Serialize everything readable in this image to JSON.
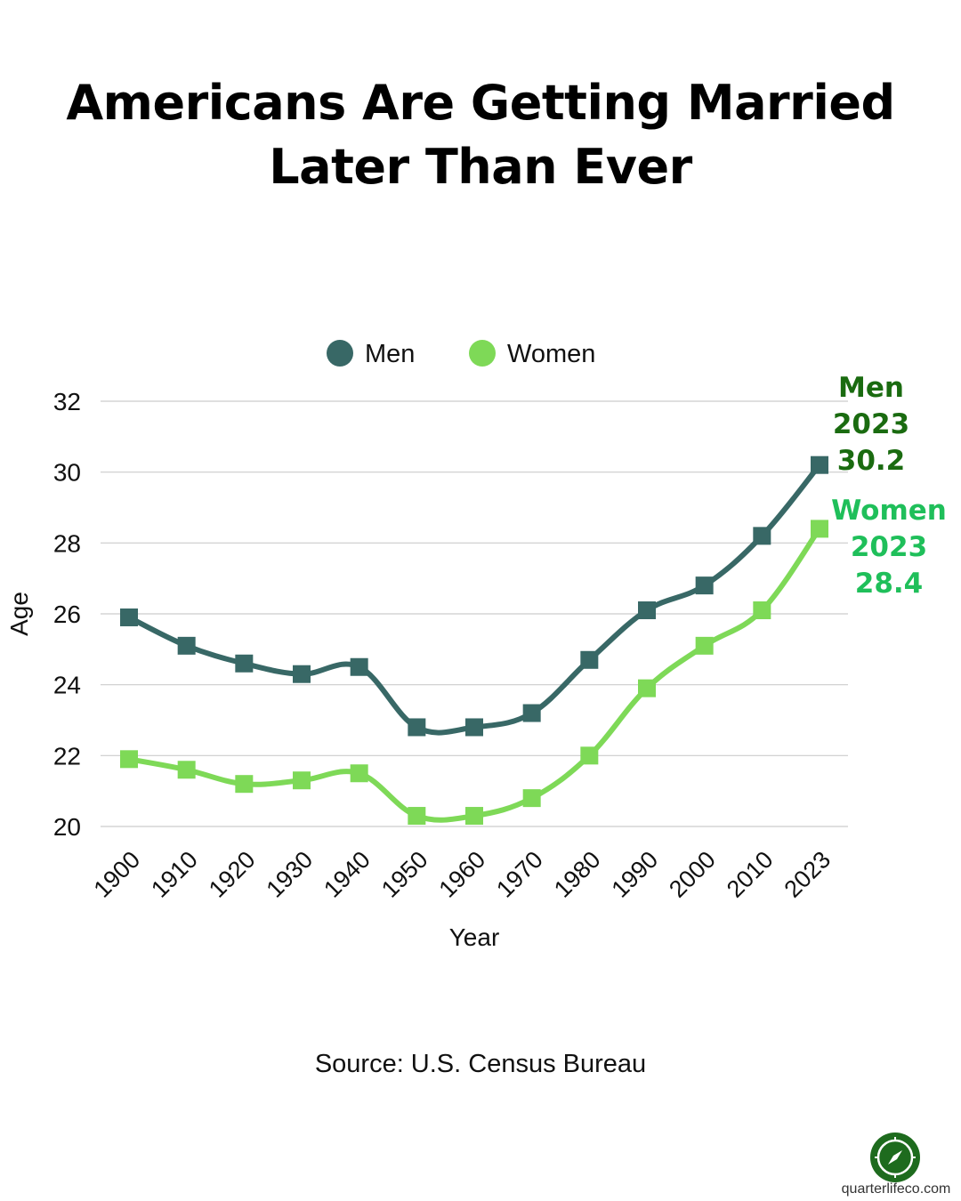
{
  "title_lines": [
    "Americans Are Getting Married",
    "Later Than Ever"
  ],
  "source": "Source: U.S. Census Bureau",
  "brand": {
    "text": "quarterlifeco.com",
    "icon": "compass-icon",
    "color": "#1e6b1e"
  },
  "colors": {
    "men": "#386866",
    "women": "#7ed957",
    "men_label": "#1a6b10",
    "women_label": "#1fbf5a",
    "grid": "#cccccc"
  },
  "end_labels": {
    "men": [
      "Men",
      "2023",
      "30.2"
    ],
    "women": [
      "Women",
      "2023",
      "28.4"
    ]
  },
  "chart_data": {
    "type": "line",
    "categories": [
      "1900",
      "1910",
      "1920",
      "1930",
      "1940",
      "1950",
      "1960",
      "1970",
      "1980",
      "1990",
      "2000",
      "2010",
      "2023"
    ],
    "series": [
      {
        "name": "Men",
        "values": [
          25.9,
          25.1,
          24.6,
          24.3,
          24.5,
          22.8,
          22.8,
          23.2,
          24.7,
          26.1,
          26.8,
          28.2,
          30.2
        ]
      },
      {
        "name": "Women",
        "values": [
          21.9,
          21.6,
          21.2,
          21.3,
          21.5,
          20.3,
          20.3,
          20.8,
          22.0,
          23.9,
          25.1,
          26.1,
          28.4
        ]
      }
    ],
    "xlabel": "Year",
    "ylabel": "Age",
    "ylim": [
      20,
      32
    ],
    "yticks": [
      "20",
      "22",
      "24",
      "26",
      "28",
      "30",
      "32"
    ],
    "grid": true,
    "legend": "top-center",
    "markers": "square",
    "smooth": true
  }
}
